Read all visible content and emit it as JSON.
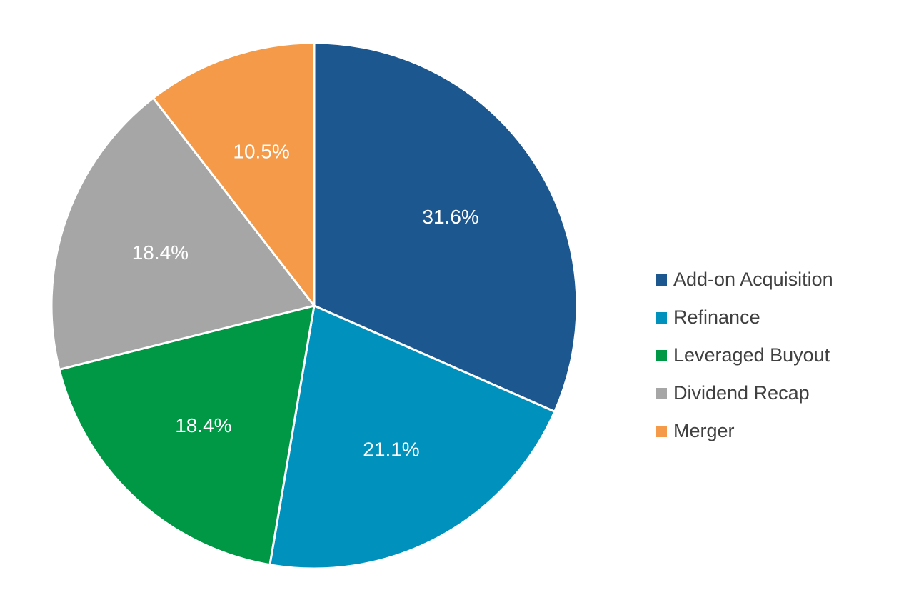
{
  "chart_data": {
    "type": "pie",
    "title": "",
    "start": "12 o'clock, clockwise",
    "slices": [
      {
        "name": "Add-on Acquisition",
        "value": 31.6,
        "label": "31.6%",
        "color": "#1c5790"
      },
      {
        "name": "Refinance",
        "value": 21.1,
        "label": "21.1%",
        "color": "#0091bd"
      },
      {
        "name": "Leveraged Buyout",
        "value": 18.4,
        "label": "18.4%",
        "color": "#009845"
      },
      {
        "name": "Dividend Recap",
        "value": 18.4,
        "label": "18.4%",
        "color": "#a6a6a6"
      },
      {
        "name": "Merger",
        "value": 10.5,
        "label": "10.5%",
        "color": "#f59a48"
      }
    ],
    "legend_position": "right"
  }
}
